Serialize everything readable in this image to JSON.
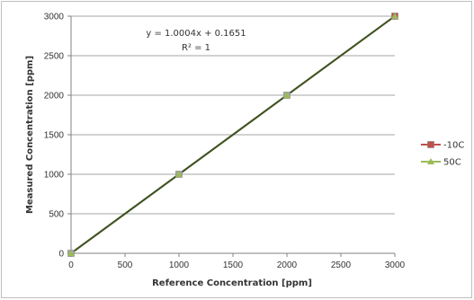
{
  "chart_data": {
    "type": "scatter",
    "xlabel": "Reference  Concentration  [ppm]",
    "ylabel": "Measured  Concentration [ppm]",
    "xlim": [
      0,
      3000
    ],
    "ylim": [
      0,
      3000
    ],
    "x_ticks": [
      "0",
      "500",
      "1000",
      "1500",
      "2000",
      "2500",
      "3000"
    ],
    "y_ticks": [
      "0",
      "500",
      "1000",
      "1500",
      "2000",
      "2500",
      "3000"
    ],
    "grid": "horizontal",
    "legend_position": "right",
    "series": [
      {
        "name": "-10C",
        "color": "#c0504d",
        "marker": "square",
        "x": [
          0,
          1000,
          2000,
          3000
        ],
        "y": [
          0,
          1000,
          2000,
          3000
        ]
      },
      {
        "name": "50C",
        "color": "#9bbb59",
        "marker": "triangle",
        "x": [
          0,
          1000,
          2000,
          3000
        ],
        "y": [
          0,
          1000,
          2000,
          3000
        ]
      }
    ],
    "trendline": {
      "color": "#3d5226",
      "slope": 1.0004,
      "intercept": 0.1651
    },
    "annotations": {
      "equation": "y = 1.0004x  +  0.1651",
      "r_squared": "R² = 1"
    }
  }
}
